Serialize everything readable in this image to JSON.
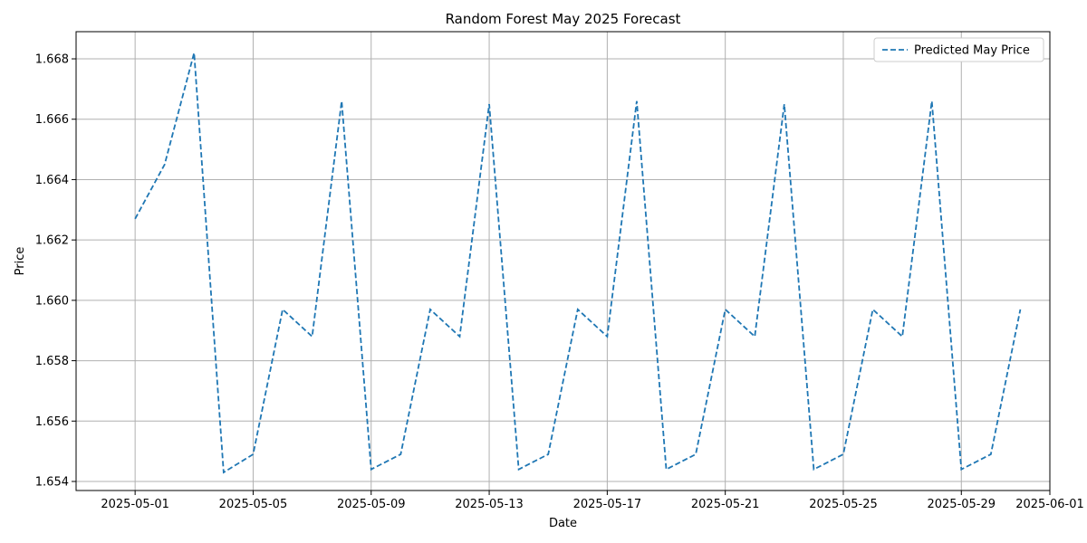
{
  "chart_data": {
    "type": "line",
    "title": "Random Forest May 2025 Forecast",
    "xlabel": "Date",
    "ylabel": "Price",
    "x_type": "date",
    "xlim": [
      "2025-04-29",
      "2025-06-01"
    ],
    "ylim": [
      1.6537,
      1.6689
    ],
    "x_ticks": [
      "2025-05-01",
      "2025-05-05",
      "2025-05-09",
      "2025-05-13",
      "2025-05-17",
      "2025-05-21",
      "2025-05-25",
      "2025-05-29",
      "2025-06-01"
    ],
    "y_ticks": [
      1.654,
      1.656,
      1.658,
      1.66,
      1.662,
      1.664,
      1.666,
      1.668
    ],
    "y_tick_labels": [
      "1.654",
      "1.656",
      "1.658",
      "1.660",
      "1.662",
      "1.664",
      "1.666",
      "1.668"
    ],
    "grid": true,
    "legend": {
      "position": "top-right",
      "entries": [
        "Predicted May Price"
      ]
    },
    "series": [
      {
        "name": "Predicted May Price",
        "color": "#1f77b4",
        "line_style": "dashed",
        "x": [
          "2025-05-01",
          "2025-05-02",
          "2025-05-03",
          "2025-05-04",
          "2025-05-05",
          "2025-05-06",
          "2025-05-07",
          "2025-05-08",
          "2025-05-09",
          "2025-05-10",
          "2025-05-11",
          "2025-05-12",
          "2025-05-13",
          "2025-05-14",
          "2025-05-15",
          "2025-05-16",
          "2025-05-17",
          "2025-05-18",
          "2025-05-19",
          "2025-05-20",
          "2025-05-21",
          "2025-05-22",
          "2025-05-23",
          "2025-05-24",
          "2025-05-25",
          "2025-05-26",
          "2025-05-27",
          "2025-05-28",
          "2025-05-29",
          "2025-05-30",
          "2025-05-31"
        ],
        "values": [
          1.6627,
          1.6645,
          1.6682,
          1.6543,
          1.6549,
          1.6597,
          1.6588,
          1.6666,
          1.6544,
          1.6549,
          1.6597,
          1.6588,
          1.6665,
          1.6544,
          1.6549,
          1.6597,
          1.6588,
          1.6666,
          1.6544,
          1.6549,
          1.6597,
          1.6588,
          1.6665,
          1.6544,
          1.6549,
          1.6597,
          1.6588,
          1.6666,
          1.6544,
          1.6549,
          1.6597
        ]
      }
    ]
  }
}
